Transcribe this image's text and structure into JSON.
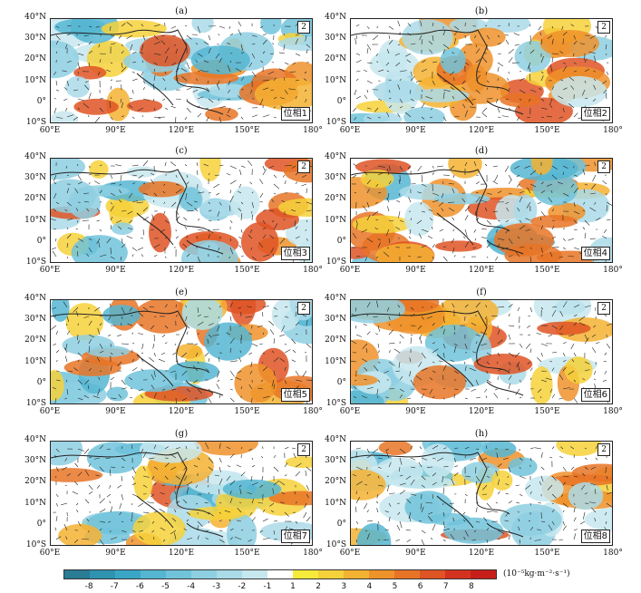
{
  "panels": [
    {
      "label": "(a)",
      "phase": "位相1",
      "ref": "2"
    },
    {
      "label": "(b)",
      "phase": "位相2",
      "ref": "2"
    },
    {
      "label": "(c)",
      "phase": "位相3",
      "ref": "2"
    },
    {
      "label": "(d)",
      "phase": "位相4",
      "ref": "2"
    },
    {
      "label": "(e)",
      "phase": "位相5",
      "ref": "2"
    },
    {
      "label": "(f)",
      "phase": "位相6",
      "ref": "2"
    },
    {
      "label": "(g)",
      "phase": "位相7",
      "ref": "2"
    },
    {
      "label": "(h)",
      "phase": "位相8",
      "ref": "2"
    }
  ],
  "lat_ticks": [
    "40°N",
    "30°N",
    "20°N",
    "10°N",
    "0°",
    "10°S"
  ],
  "lon_ticks": [
    "60°E",
    "90°E",
    "120°E",
    "150°E",
    "180°"
  ],
  "colorbar": {
    "ticks": [
      "-8",
      "-7",
      "-6",
      "-5",
      "-4",
      "-3",
      "-2",
      "-1",
      "1",
      "2",
      "3",
      "4",
      "5",
      "6",
      "7",
      "8"
    ],
    "colors": [
      "#2a7b94",
      "#2f93b0",
      "#3aa6c6",
      "#55b6d2",
      "#71c3da",
      "#8ecfe2",
      "#aadbe9",
      "#c7e7ef",
      "#ffffff",
      "#f6ea3a",
      "#f6d13a",
      "#f4b232",
      "#ee922a",
      "#e77426",
      "#df5424",
      "#d3321f",
      "#c81e1a"
    ],
    "unit": "(10⁻⁵kg·m⁻²·s⁻¹)"
  }
}
